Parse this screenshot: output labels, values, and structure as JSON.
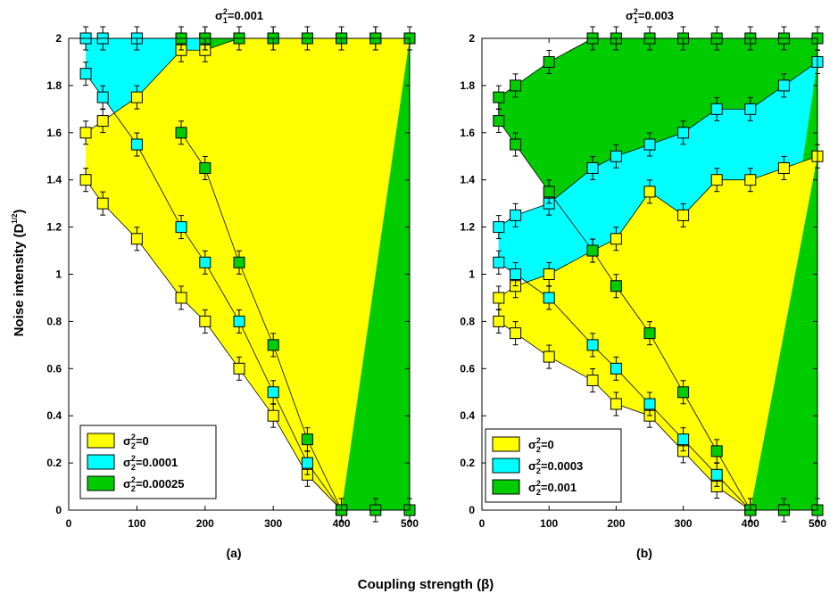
{
  "figure": {
    "ylabel_base": "Noise intensity (D",
    "ylabel_exp": "1/2",
    "ylabel_close": ")",
    "xlabel": "Coupling strength (β)",
    "colors": {
      "yellow": "#ffff00",
      "cyan": "#00ffff",
      "green": "#00cc00",
      "line": "#000000"
    }
  },
  "chart_data": [
    {
      "type": "area",
      "panel_label": "(a)",
      "title": {
        "sym": "σ",
        "sup": "2",
        "sub": "1",
        "value": "=0.001"
      },
      "xlim": [
        0,
        500
      ],
      "ylim": [
        0,
        2
      ],
      "xticks": [
        "0",
        "100",
        "200",
        "300",
        "400",
        "500"
      ],
      "yticks": [
        "0",
        "0.2",
        "0.4",
        "0.6",
        "0.8",
        "1",
        "1.2",
        "1.4",
        "1.6",
        "1.8",
        "2"
      ],
      "legend_position": "bottom-left",
      "series": [
        {
          "name": "σ²=0",
          "legend": {
            "sym": "σ",
            "sup": "2",
            "sub": "2",
            "value": "=0"
          },
          "color": "yellow",
          "upper": {
            "x": [
              25,
              50,
              100,
              165,
              200,
              250,
              300,
              400,
              450,
              500
            ],
            "y": [
              1.6,
              1.65,
              1.75,
              1.95,
              1.95,
              2,
              2,
              2,
              2,
              2
            ]
          },
          "lower": {
            "x": [
              25,
              50,
              100,
              165,
              200,
              250,
              300,
              350,
              400
            ],
            "y": [
              1.4,
              1.3,
              1.15,
              0.9,
              0.8,
              0.6,
              0.4,
              0.15,
              0
            ]
          }
        },
        {
          "name": "σ²=0.0001",
          "legend": {
            "sym": "σ",
            "sup": "2",
            "sub": "2",
            "value": "=0.0001"
          },
          "color": "cyan",
          "upper": {
            "x": [
              25,
              50,
              100,
              165,
              200
            ],
            "y": [
              2,
              2,
              2,
              2,
              2
            ]
          },
          "lower": {
            "x": [
              25,
              50,
              100,
              165,
              200,
              250,
              300,
              350,
              400
            ],
            "y": [
              1.85,
              1.75,
              1.55,
              1.2,
              1.05,
              0.8,
              0.5,
              0.2,
              0
            ]
          }
        },
        {
          "name": "σ²=0.00025",
          "legend": {
            "sym": "σ",
            "sup": "2",
            "sub": "2",
            "value": "=0.00025"
          },
          "color": "green",
          "upper": {
            "x": [
              165,
              200,
              250,
              300,
              350,
              400,
              450,
              500
            ],
            "y": [
              2,
              2,
              2,
              2,
              2,
              2,
              2,
              2
            ]
          },
          "lower": {
            "x": [
              165,
              200,
              250,
              300,
              350,
              400,
              450,
              500
            ],
            "y": [
              1.6,
              1.45,
              1.05,
              0.7,
              0.3,
              0,
              0,
              0
            ]
          }
        }
      ]
    },
    {
      "type": "area",
      "panel_label": "(b)",
      "title": {
        "sym": "σ",
        "sup": "2",
        "sub": "1",
        "value": "=0.003"
      },
      "xlim": [
        0,
        500
      ],
      "ylim": [
        0,
        2
      ],
      "xticks": [
        "0",
        "100",
        "200",
        "300",
        "400",
        "500"
      ],
      "yticks": [
        "0",
        "0.2",
        "0.4",
        "0.6",
        "0.8",
        "1",
        "1.2",
        "1.4",
        "1.6",
        "1.8",
        "2"
      ],
      "legend_position": "bottom-left",
      "series": [
        {
          "name": "σ²=0",
          "legend": {
            "sym": "σ",
            "sup": "2",
            "sub": "2",
            "value": "=0"
          },
          "color": "yellow",
          "upper": {
            "x": [
              25,
              50,
              100,
              165,
              200,
              250,
              300,
              350,
              400,
              450,
              500
            ],
            "y": [
              0.9,
              0.95,
              1.0,
              1.1,
              1.15,
              1.35,
              1.25,
              1.4,
              1.4,
              1.45,
              1.5
            ]
          },
          "lower": {
            "x": [
              25,
              50,
              100,
              165,
              200,
              250,
              300,
              350,
              400
            ],
            "y": [
              0.8,
              0.75,
              0.65,
              0.55,
              0.45,
              0.4,
              0.25,
              0.1,
              0
            ]
          }
        },
        {
          "name": "σ²=0.0003",
          "legend": {
            "sym": "σ",
            "sup": "2",
            "sub": "2",
            "value": "=0.0003"
          },
          "color": "cyan",
          "upper": {
            "x": [
              25,
              50,
              100,
              165,
              200,
              250,
              300,
              350,
              400,
              450,
              500
            ],
            "y": [
              1.2,
              1.25,
              1.3,
              1.45,
              1.5,
              1.55,
              1.6,
              1.7,
              1.7,
              1.8,
              1.9
            ]
          },
          "lower": {
            "x": [
              25,
              50,
              100,
              165,
              200,
              250,
              300,
              350,
              400
            ],
            "y": [
              1.05,
              1.0,
              0.9,
              0.7,
              0.6,
              0.45,
              0.3,
              0.15,
              0
            ]
          }
        },
        {
          "name": "σ²=0.001",
          "legend": {
            "sym": "σ",
            "sup": "2",
            "sub": "2",
            "value": "=0.001"
          },
          "color": "green",
          "upper": {
            "x": [
              25,
              50,
              100,
              165,
              200,
              250,
              300,
              350,
              400,
              450,
              500
            ],
            "y": [
              1.75,
              1.8,
              1.9,
              2,
              2,
              2,
              2,
              2,
              2,
              2,
              2
            ]
          },
          "lower": {
            "x": [
              25,
              50,
              100,
              165,
              200,
              250,
              300,
              350,
              400,
              450,
              500
            ],
            "y": [
              1.65,
              1.55,
              1.35,
              1.1,
              0.95,
              0.75,
              0.5,
              0.25,
              0,
              0,
              0
            ]
          }
        }
      ]
    }
  ]
}
